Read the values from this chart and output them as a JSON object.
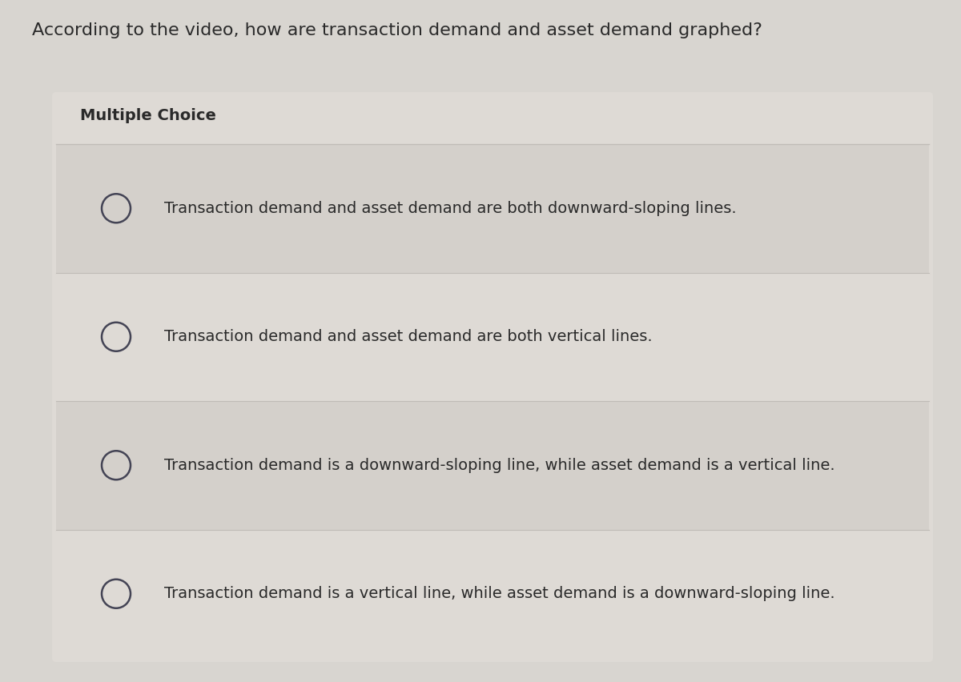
{
  "title": "According to the video, how are transaction demand and asset demand graphed?",
  "subtitle": "Multiple Choice",
  "options": [
    "Transaction demand and asset demand are both downward-sloping lines.",
    "Transaction demand and asset demand are both vertical lines.",
    "Transaction demand is a downward-sloping line, while asset demand is a vertical line.",
    "Transaction demand is a vertical line, while asset demand is a downward-sloping line."
  ],
  "bg_color": "#d8d5d0",
  "panel_color": "#dedad5",
  "option_row_color_even": "#d4d0cb",
  "option_row_color_odd": "#dedad5",
  "title_color": "#2a2a2a",
  "option_text_color": "#2a2a2a",
  "subtitle_color": "#2a2a2a",
  "circle_edge_color": "#444455",
  "circle_fill_color": "#dedad5",
  "title_fontsize": 16,
  "subtitle_fontsize": 14,
  "option_fontsize": 14,
  "fig_width": 12.0,
  "fig_height": 8.52
}
